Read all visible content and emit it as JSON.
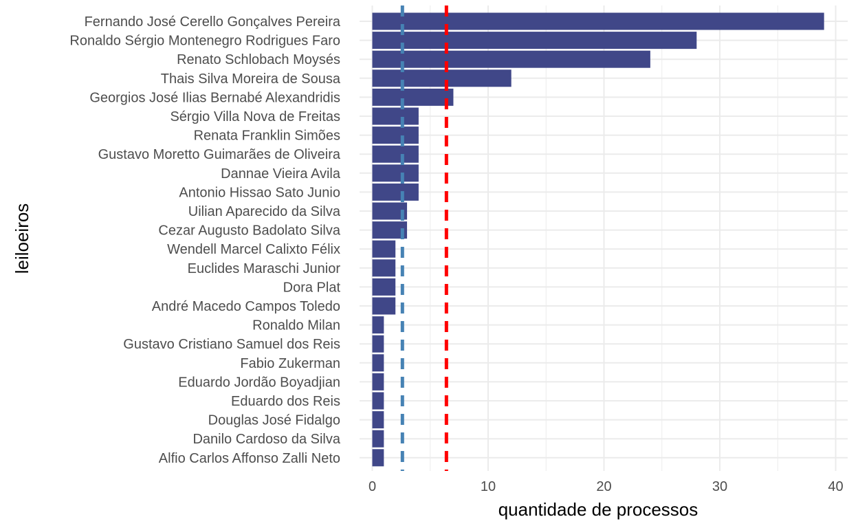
{
  "chart_data": {
    "type": "bar",
    "orientation": "horizontal",
    "xlabel": "quantidade de processos",
    "ylabel": "leiloeiros",
    "xlim": [
      0,
      41
    ],
    "x_ticks": [
      0,
      10,
      20,
      30,
      40
    ],
    "x_tick_labels": [
      "0",
      "10",
      "20",
      "30",
      "40"
    ],
    "grid": true,
    "categories": [
      "Fernando José Cerello Gonçalves Pereira",
      "Ronaldo Sérgio Montenegro Rodrigues Faro",
      "Renato Schlobach Moysés",
      "Thais Silva Moreira de Sousa",
      "Georgios José Ilias Bernabé Alexandridis",
      "Sérgio Villa Nova de Freitas",
      "Renata Franklin Simões",
      "Gustavo Moretto Guimarães de Oliveira",
      "Dannae Vieira Avila",
      "Antonio Hissao Sato Junio",
      "Uilian Aparecido da Silva",
      "Cezar Augusto Badolato Silva",
      "Wendell Marcel Calixto Félix",
      "Euclides Maraschi Junior",
      "Dora Plat",
      "André Macedo Campos Toledo",
      "Ronaldo Milan",
      "Gustavo Cristiano Samuel dos Reis",
      "Fabio Zukerman",
      "Eduardo Jordão Boyadjian",
      "Eduardo dos Reis",
      "Douglas José Fidalgo",
      "Danilo Cardoso da Silva",
      "Alfio Carlos Affonso Zalli Neto"
    ],
    "values": [
      39,
      28,
      24,
      12,
      7,
      4,
      4,
      4,
      4,
      4,
      3,
      3,
      2,
      2,
      2,
      2,
      1,
      1,
      1,
      1,
      1,
      1,
      1,
      1
    ],
    "reference_lines": [
      {
        "value": 2.6,
        "color": "#4682b4",
        "style": "dashed"
      },
      {
        "value": 6.4,
        "color": "#ff0000",
        "style": "dashed"
      }
    ],
    "colors": {
      "bar": "#404788",
      "grid": "#ebebeb",
      "tick_text": "#4d4d4d",
      "title_text": "#000000"
    }
  }
}
